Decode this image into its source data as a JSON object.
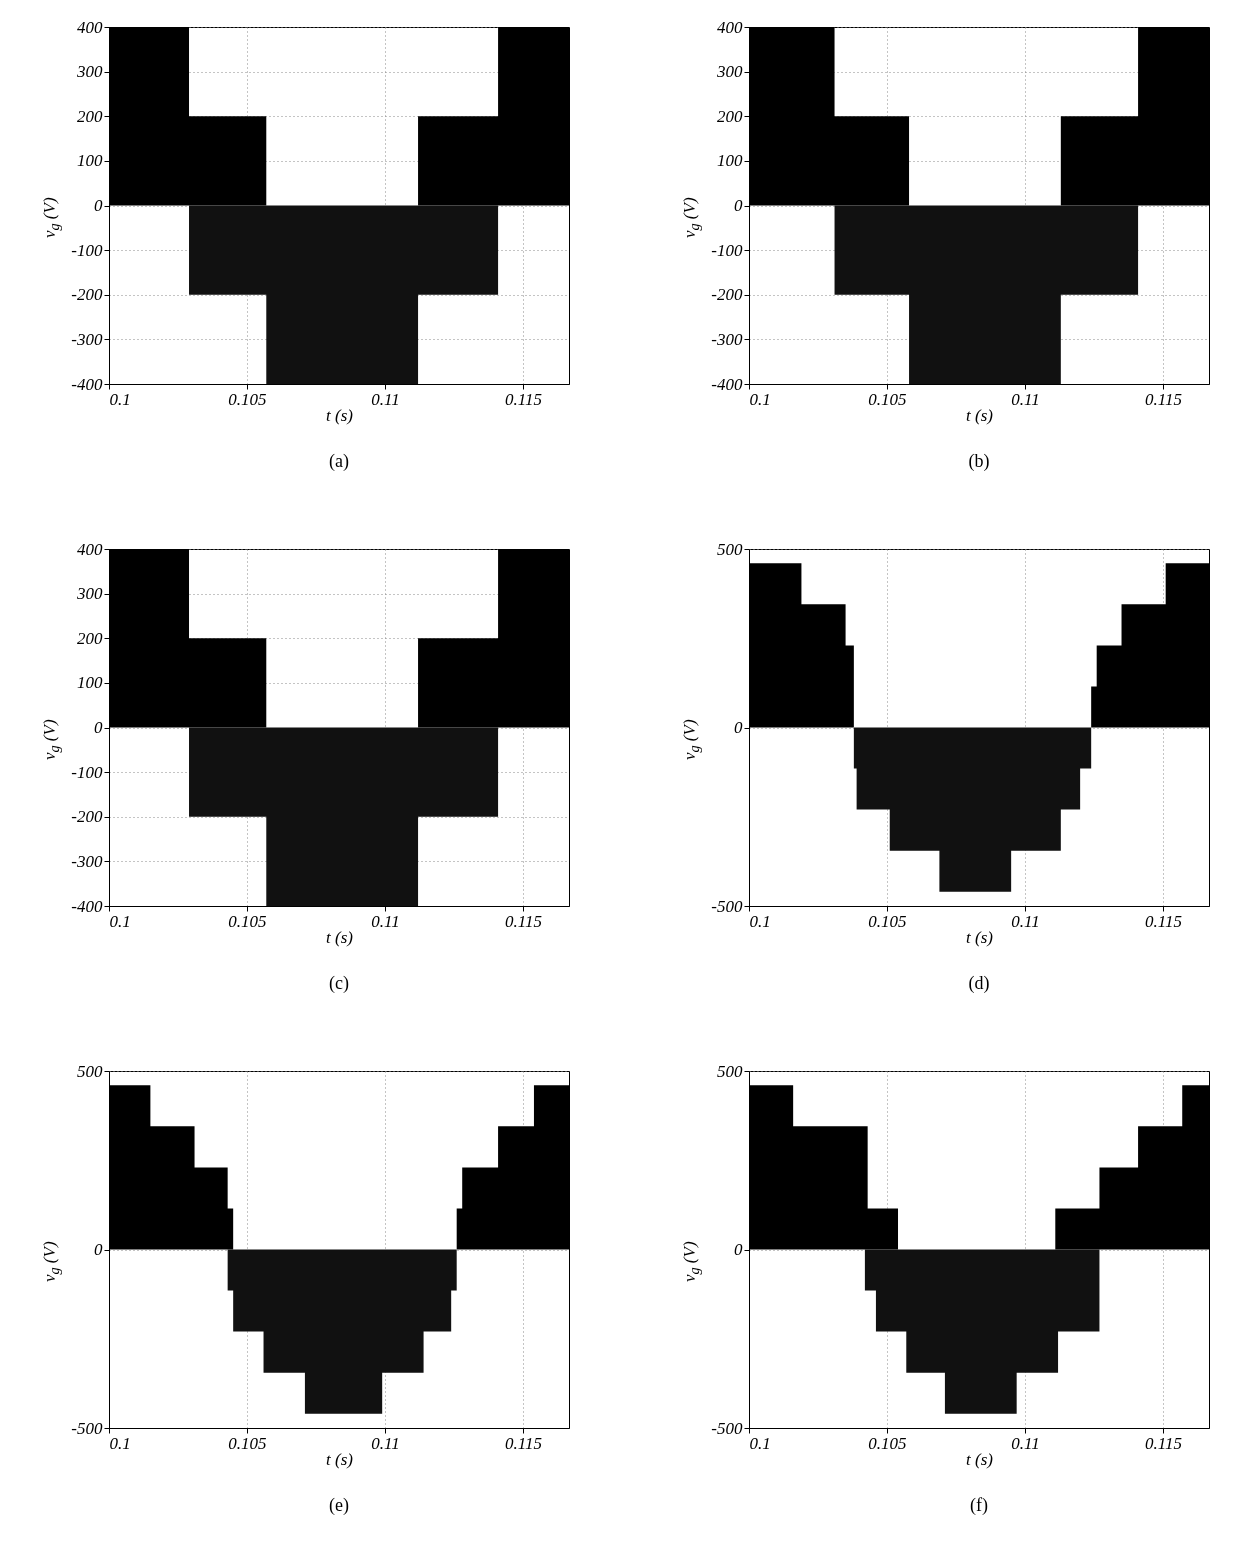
{
  "chart_data": [
    {
      "type": "area",
      "title": "(a)",
      "xlabel": "t (s)",
      "ylabel": "v$_{g}$ (V)",
      "xlim": [
        0.1,
        0.11667
      ],
      "xticks": [
        0.1,
        0.105,
        0.11,
        0.115
      ],
      "ylim": [
        -400,
        400
      ],
      "yticks": [
        -400,
        -300,
        -200,
        -100,
        0,
        100,
        200,
        300,
        400
      ],
      "grid": true,
      "series": [
        {
          "color": "#000000",
          "x": [
            0.1,
            0.1029,
            0.1057,
            0.1112,
            0.1141,
            0.11667
          ],
          "values": [
            400,
            200,
            0,
            200,
            400,
            400
          ]
        },
        {
          "color": "#111111",
          "x": [
            0.1,
            0.1029,
            0.1057,
            0.1112,
            0.1141,
            0.11667
          ],
          "values": [
            0,
            -200,
            -400,
            -200,
            0,
            0
          ]
        }
      ]
    },
    {
      "type": "area",
      "title": "(b)",
      "xlabel": "t (s)",
      "ylabel": "v$_{g}$ (V)",
      "xlim": [
        0.1,
        0.11667
      ],
      "xticks": [
        0.1,
        0.105,
        0.11,
        0.115
      ],
      "ylim": [
        -400,
        400
      ],
      "yticks": [
        -400,
        -300,
        -200,
        -100,
        0,
        100,
        200,
        300,
        400
      ],
      "grid": true,
      "series": [
        {
          "color": "#000000",
          "x": [
            0.1,
            0.1031,
            0.1058,
            0.1113,
            0.1141,
            0.11667
          ],
          "values": [
            400,
            200,
            0,
            200,
            400,
            400
          ]
        },
        {
          "color": "#111111",
          "x": [
            0.1,
            0.1031,
            0.1058,
            0.1113,
            0.1141,
            0.11667
          ],
          "values": [
            0,
            -200,
            -400,
            -200,
            0,
            0
          ]
        }
      ]
    },
    {
      "type": "area",
      "title": "(c)",
      "xlabel": "t (s)",
      "ylabel": "v$_{g}$ (V)",
      "xlim": [
        0.1,
        0.11667
      ],
      "xticks": [
        0.1,
        0.105,
        0.11,
        0.115
      ],
      "ylim": [
        -400,
        400
      ],
      "yticks": [
        -400,
        -300,
        -200,
        -100,
        0,
        100,
        200,
        300,
        400
      ],
      "grid": true,
      "series": [
        {
          "color": "#000000",
          "x": [
            0.1,
            0.1029,
            0.1057,
            0.1112,
            0.1141,
            0.11667
          ],
          "values": [
            400,
            200,
            0,
            200,
            400,
            400
          ]
        },
        {
          "color": "#111111",
          "x": [
            0.1,
            0.1029,
            0.1057,
            0.1112,
            0.1141,
            0.11667
          ],
          "values": [
            0,
            -200,
            -400,
            -200,
            0,
            0
          ]
        }
      ]
    },
    {
      "type": "area",
      "title": "(d)",
      "xlabel": "t (s)",
      "ylabel": "v$_{g}$ (V)",
      "xlim": [
        0.1,
        0.11667
      ],
      "xticks": [
        0.1,
        0.105,
        0.11,
        0.115
      ],
      "ylim": [
        -500,
        500
      ],
      "yticks": [
        -500,
        0,
        500
      ],
      "grid": true,
      "series": [
        {
          "color": "#000000",
          "x": [
            0.1,
            0.1019,
            0.1035,
            0.1038,
            0.1124,
            0.1126,
            0.1135,
            0.1151,
            0.11667
          ],
          "values": [
            460,
            345,
            230,
            0,
            115,
            230,
            345,
            460,
            460
          ]
        },
        {
          "color": "#111111",
          "x": [
            0.1,
            0.1038,
            0.1039,
            0.1051,
            0.1069,
            0.1095,
            0.1113,
            0.112,
            0.1124,
            0.11667
          ],
          "values": [
            0,
            -115,
            -230,
            -345,
            -460,
            -345,
            -230,
            -115,
            0,
            0
          ]
        }
      ]
    },
    {
      "type": "area",
      "title": "(e)",
      "xlabel": "t (s)",
      "ylabel": "v$_{g}$ (V)",
      "xlim": [
        0.1,
        0.11667
      ],
      "xticks": [
        0.1,
        0.105,
        0.11,
        0.115
      ],
      "ylim": [
        -500,
        500
      ],
      "yticks": [
        -500,
        0,
        500
      ],
      "grid": true,
      "series": [
        {
          "color": "#000000",
          "x": [
            0.1,
            0.1015,
            0.1031,
            0.1043,
            0.1045,
            0.1126,
            0.1128,
            0.1141,
            0.1154,
            0.11667
          ],
          "values": [
            460,
            345,
            230,
            115,
            0,
            115,
            230,
            345,
            460,
            460
          ]
        },
        {
          "color": "#111111",
          "x": [
            0.1,
            0.1043,
            0.1045,
            0.1056,
            0.1071,
            0.1099,
            0.1114,
            0.1124,
            0.1126,
            0.11667
          ],
          "values": [
            0,
            -115,
            -230,
            -345,
            -460,
            -345,
            -230,
            -115,
            0,
            0
          ]
        }
      ]
    },
    {
      "type": "area",
      "title": "(f)",
      "xlabel": "t (s)",
      "ylabel": "v$_{g}$ (V)",
      "xlim": [
        0.1,
        0.11667
      ],
      "xticks": [
        0.1,
        0.105,
        0.11,
        0.115
      ],
      "ylim": [
        -500,
        500
      ],
      "yticks": [
        -500,
        0,
        500
      ],
      "grid": true,
      "series": [
        {
          "color": "#000000",
          "x": [
            0.1,
            0.1016,
            0.1043,
            0.1054,
            0.1111,
            0.1127,
            0.1141,
            0.1157,
            0.11667
          ],
          "values": [
            460,
            345,
            115,
            0,
            115,
            230,
            345,
            460,
            460
          ]
        },
        {
          "color": "#111111",
          "x": [
            0.1,
            0.1042,
            0.1046,
            0.1057,
            0.1071,
            0.1097,
            0.1112,
            0.1127,
            0.11667
          ],
          "values": [
            0,
            -115,
            -230,
            -345,
            -460,
            -345,
            -230,
            0,
            0
          ]
        }
      ]
    }
  ]
}
